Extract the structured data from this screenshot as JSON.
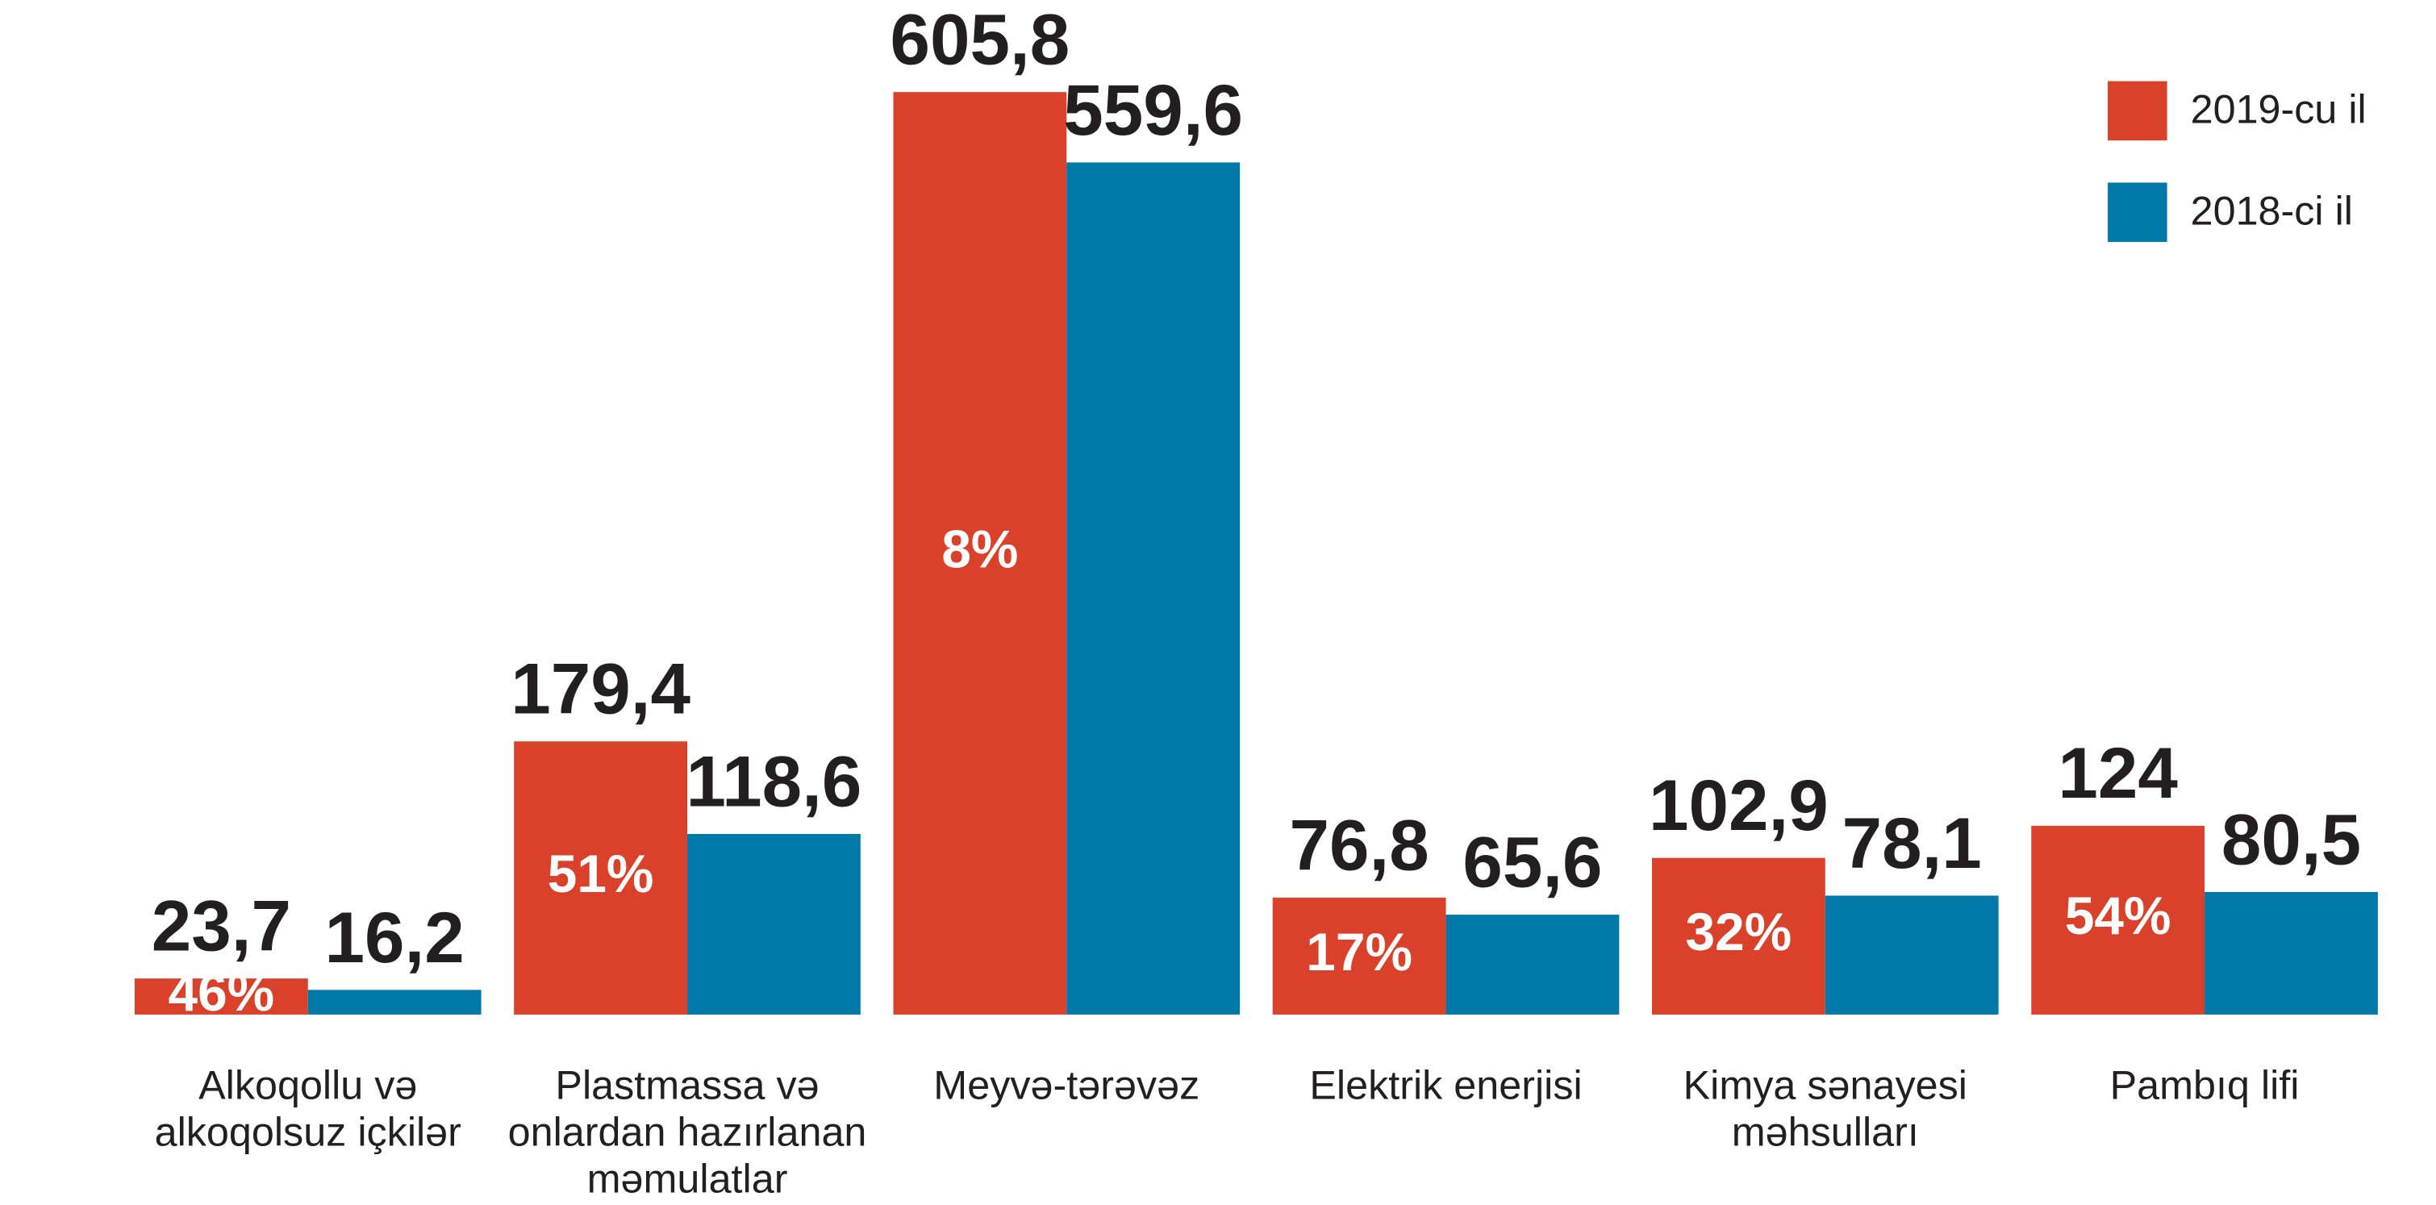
{
  "chart_data": {
    "type": "bar",
    "categories": [
      "Alkoqollu və alkoqolsuz içkilər",
      "Plastmassa və onlardan hazırlanan məmulatlar",
      "Meyvə-tərəvəz",
      "Elektrik enerjisi",
      "Kimya sənayesi məhsulları",
      "Pambıq lifi"
    ],
    "series": [
      {
        "name": "2019-cu il",
        "color": "#d9412a",
        "values": [
          23.7,
          179.4,
          605.8,
          76.8,
          102.9,
          124
        ],
        "value_labels": [
          "23,7",
          "179,4",
          "605,8",
          "76,8",
          "102,9",
          "124"
        ]
      },
      {
        "name": "2018-ci il",
        "color": "#0078a8",
        "values": [
          16.2,
          118.6,
          559.6,
          65.6,
          78.1,
          80.5
        ],
        "value_labels": [
          "16,2",
          "118,6",
          "559,6",
          "65,6",
          "78,1",
          "80,5"
        ]
      }
    ],
    "annotations": [
      "46%",
      "51%",
      "8%",
      "17%",
      "32%",
      "54%"
    ],
    "legend": "top-right"
  }
}
